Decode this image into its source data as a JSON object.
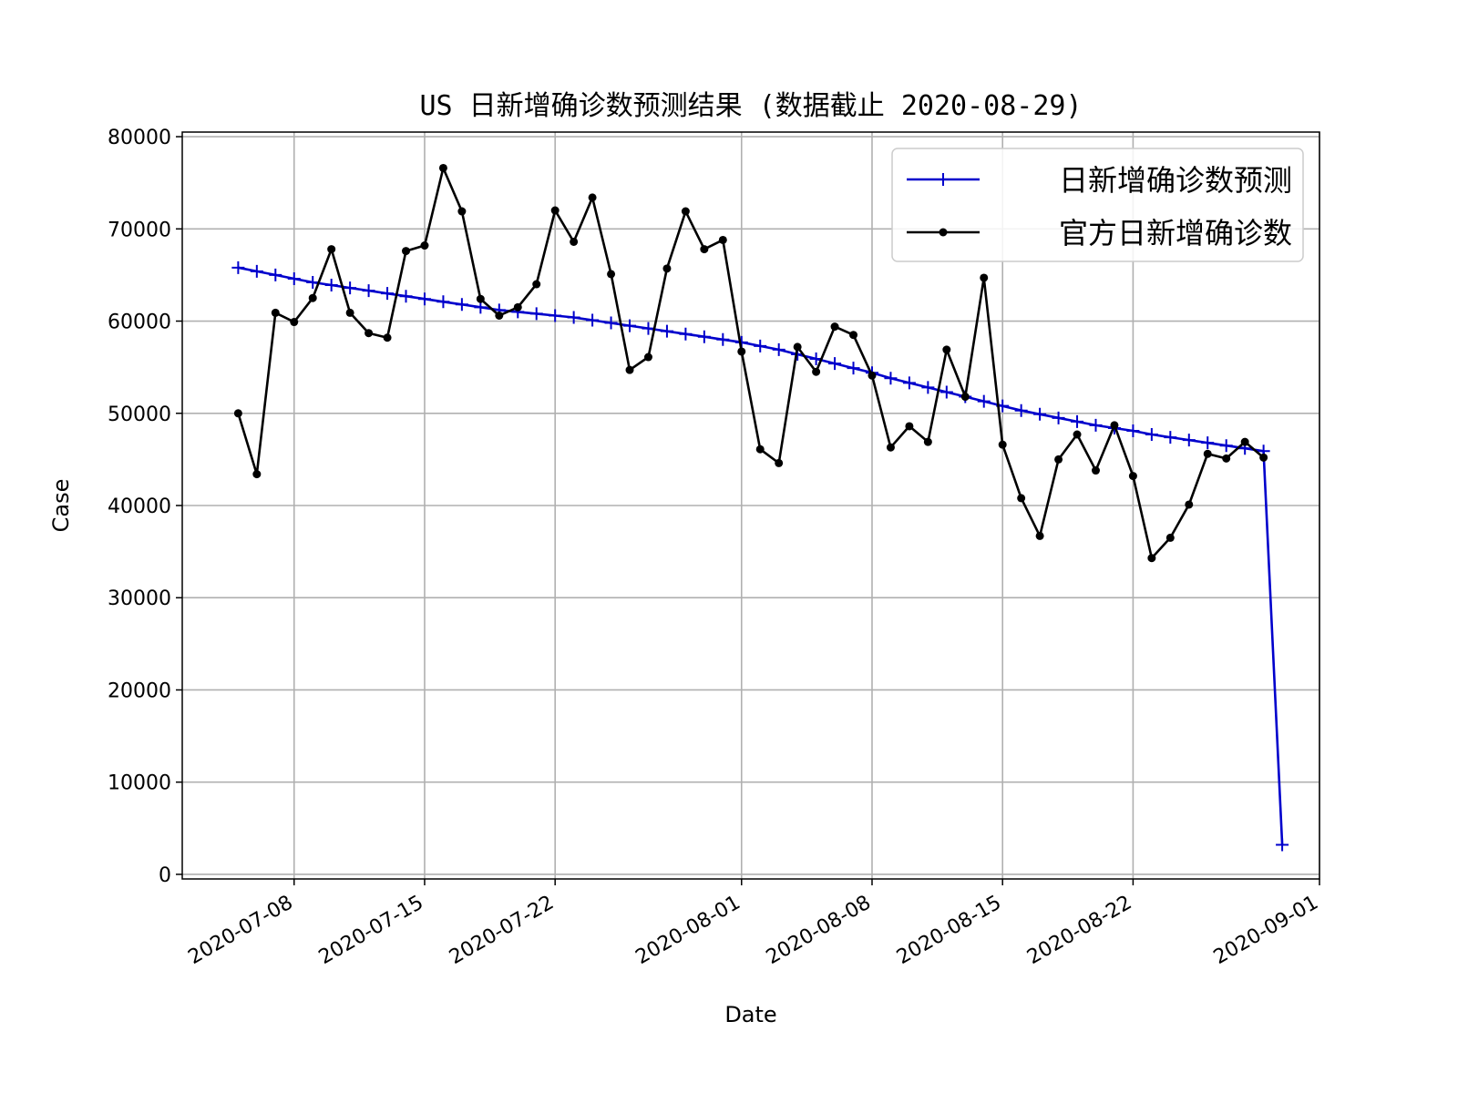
{
  "chart_data": {
    "type": "line",
    "title": "US 日新增确诊数预测结果 (数据截止 2020-08-29)",
    "xlabel": "Date",
    "ylabel": "Case",
    "x_range": [
      "2020-07-02",
      "2020-09-01"
    ],
    "ylim": [
      -500,
      80500
    ],
    "grid": true,
    "legend_position": "top-right",
    "x_ticks": [
      "2020-07-08",
      "2020-07-15",
      "2020-07-22",
      "2020-08-01",
      "2020-08-08",
      "2020-08-15",
      "2020-08-22",
      "2020-09-01"
    ],
    "y_ticks": [
      "0",
      "10000",
      "20000",
      "30000",
      "40000",
      "50000",
      "60000",
      "70000",
      "80000"
    ],
    "series": [
      {
        "name": "日新增确诊数预测",
        "color": "#0000cc",
        "marker": "plus",
        "x": [
          "2020-07-05",
          "2020-07-06",
          "2020-07-07",
          "2020-07-08",
          "2020-07-09",
          "2020-07-10",
          "2020-07-11",
          "2020-07-12",
          "2020-07-13",
          "2020-07-14",
          "2020-07-15",
          "2020-07-16",
          "2020-07-17",
          "2020-07-18",
          "2020-07-19",
          "2020-07-20",
          "2020-07-21",
          "2020-07-22",
          "2020-07-23",
          "2020-07-24",
          "2020-07-25",
          "2020-07-26",
          "2020-07-27",
          "2020-07-28",
          "2020-07-29",
          "2020-07-30",
          "2020-07-31",
          "2020-08-01",
          "2020-08-02",
          "2020-08-03",
          "2020-08-04",
          "2020-08-05",
          "2020-08-06",
          "2020-08-07",
          "2020-08-08",
          "2020-08-09",
          "2020-08-10",
          "2020-08-11",
          "2020-08-12",
          "2020-08-13",
          "2020-08-14",
          "2020-08-15",
          "2020-08-16",
          "2020-08-17",
          "2020-08-18",
          "2020-08-19",
          "2020-08-20",
          "2020-08-21",
          "2020-08-22",
          "2020-08-23",
          "2020-08-24",
          "2020-08-25",
          "2020-08-26",
          "2020-08-27",
          "2020-08-28",
          "2020-08-29",
          "2020-08-30"
        ],
        "values": [
          65800,
          65400,
          65000,
          64600,
          64200,
          63900,
          63600,
          63300,
          63000,
          62700,
          62400,
          62100,
          61800,
          61500,
          61200,
          61000,
          60800,
          60600,
          60400,
          60100,
          59800,
          59500,
          59200,
          58900,
          58600,
          58300,
          58000,
          57700,
          57300,
          56900,
          56400,
          55900,
          55400,
          54900,
          54400,
          53800,
          53300,
          52800,
          52300,
          51800,
          51300,
          50800,
          50300,
          49900,
          49500,
          49100,
          48700,
          48400,
          48100,
          47700,
          47400,
          47100,
          46800,
          46500,
          46200,
          45900,
          3200
        ]
      },
      {
        "name": "官方日新增确诊数",
        "color": "#000000",
        "marker": "dot",
        "x": [
          "2020-07-05",
          "2020-07-06",
          "2020-07-07",
          "2020-07-08",
          "2020-07-09",
          "2020-07-10",
          "2020-07-11",
          "2020-07-12",
          "2020-07-13",
          "2020-07-14",
          "2020-07-15",
          "2020-07-16",
          "2020-07-17",
          "2020-07-18",
          "2020-07-19",
          "2020-07-20",
          "2020-07-21",
          "2020-07-22",
          "2020-07-23",
          "2020-07-24",
          "2020-07-25",
          "2020-07-26",
          "2020-07-27",
          "2020-07-28",
          "2020-07-29",
          "2020-07-30",
          "2020-07-31",
          "2020-08-01",
          "2020-08-02",
          "2020-08-03",
          "2020-08-04",
          "2020-08-05",
          "2020-08-06",
          "2020-08-07",
          "2020-08-08",
          "2020-08-09",
          "2020-08-10",
          "2020-08-11",
          "2020-08-12",
          "2020-08-13",
          "2020-08-14",
          "2020-08-15",
          "2020-08-16",
          "2020-08-17",
          "2020-08-18",
          "2020-08-19",
          "2020-08-20",
          "2020-08-21",
          "2020-08-22",
          "2020-08-23",
          "2020-08-24",
          "2020-08-25",
          "2020-08-26",
          "2020-08-27",
          "2020-08-28",
          "2020-08-29"
        ],
        "values": [
          50000,
          43400,
          60900,
          59900,
          62500,
          67800,
          60900,
          58700,
          58200,
          67600,
          68200,
          76600,
          71900,
          62400,
          60600,
          61500,
          64000,
          72000,
          68600,
          73400,
          65100,
          54700,
          56100,
          65700,
          71900,
          67800,
          68800,
          56700,
          46100,
          44600,
          57200,
          54500,
          59400,
          58500,
          54100,
          46300,
          48600,
          46900,
          56900,
          51800,
          64700,
          46600,
          40800,
          36700,
          45000,
          47700,
          43800,
          48700,
          43200,
          34300,
          36500,
          40100,
          45600,
          45100,
          46900,
          45200
        ]
      }
    ]
  }
}
